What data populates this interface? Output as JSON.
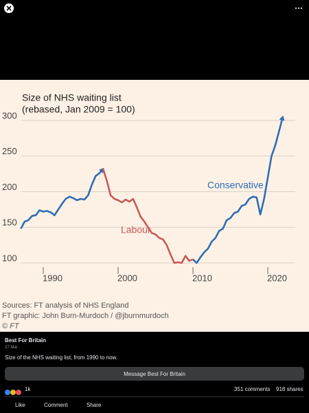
{
  "chart_data": {
    "type": "line",
    "title": "Size of NHS waiting list",
    "subtitle": "(rebased, Jan 2009 = 100)",
    "x": [
      1987,
      1987.5,
      1988,
      1988.5,
      1989,
      1989.5,
      1990,
      1990.5,
      1991,
      1991.5,
      1992,
      1992.5,
      1993,
      1993.5,
      1994,
      1994.5,
      1995,
      1995.5,
      1996,
      1996.5,
      1997,
      1997.5,
      1998,
      1998.5,
      1999,
      1999.5,
      2000,
      2000.5,
      2001,
      2001.5,
      2002,
      2002.5,
      2003,
      2003.5,
      2004,
      2004.5,
      2005,
      2005.5,
      2006,
      2006.5,
      2007,
      2007.5,
      2008,
      2008.5,
      2009,
      2009.5,
      2010,
      2010.5,
      2011,
      2011.5,
      2012,
      2012.5,
      2013,
      2013.5,
      2014,
      2014.5,
      2015,
      2015.5,
      2016,
      2016.5,
      2017,
      2017.5,
      2018,
      2018.5,
      2019,
      2019.5,
      2020,
      2020.5,
      2021,
      2021.5,
      2022
    ],
    "series": [
      {
        "name": "Conservative",
        "color": "#2e6db4",
        "values": [
          148,
          158,
          160,
          166,
          167,
          174,
          172,
          173,
          171,
          167,
          175,
          183,
          190,
          193,
          191,
          188,
          190,
          189,
          195,
          210,
          222,
          226,
          232,
          null,
          null,
          null,
          null,
          null,
          null,
          null,
          null,
          null,
          null,
          null,
          null,
          null,
          null,
          null,
          null,
          null,
          null,
          null,
          null,
          null,
          null,
          null,
          105,
          100,
          108,
          115,
          120,
          130,
          135,
          145,
          148,
          160,
          163,
          170,
          172,
          180,
          182,
          190,
          193,
          192,
          168,
          190,
          220,
          250,
          265,
          285,
          305
        ]
      },
      {
        "name": "Labour",
        "color": "#c8595a",
        "values": [
          null,
          null,
          null,
          null,
          null,
          null,
          null,
          null,
          null,
          null,
          null,
          null,
          null,
          null,
          null,
          null,
          null,
          null,
          null,
          null,
          null,
          null,
          232,
          215,
          195,
          190,
          188,
          185,
          189,
          186,
          190,
          178,
          165,
          158,
          150,
          142,
          140,
          135,
          133,
          125,
          112,
          100,
          101,
          100,
          110,
          103,
          105,
          null,
          null,
          null,
          null,
          null,
          null,
          null,
          null,
          null,
          null,
          null,
          null,
          null,
          null,
          null,
          null,
          null,
          null,
          null,
          null,
          null,
          null,
          null,
          null
        ]
      }
    ],
    "xlim": [
      1987,
      2024
    ],
    "xticks": [
      1990,
      2000,
      2010,
      2020
    ],
    "ylim": [
      90,
      310
    ],
    "yticks": [
      100,
      150,
      200,
      250,
      300
    ],
    "grid": true,
    "sources": [
      "Sources: FT analysis of NHS England",
      "FT graphic: John Burn-Murdoch / @jburnmurdoch",
      "© FT"
    ]
  },
  "post": {
    "author": "Best For Britain",
    "date": "27 Mar · ",
    "text": "Size of the NHS waiting list, from 1990 to now.",
    "button": "Message Best For Britain",
    "reactions": "1k",
    "comments": "351 comments",
    "shares": "918 shares",
    "actions": [
      "Like",
      "Comment",
      "Share"
    ]
  }
}
